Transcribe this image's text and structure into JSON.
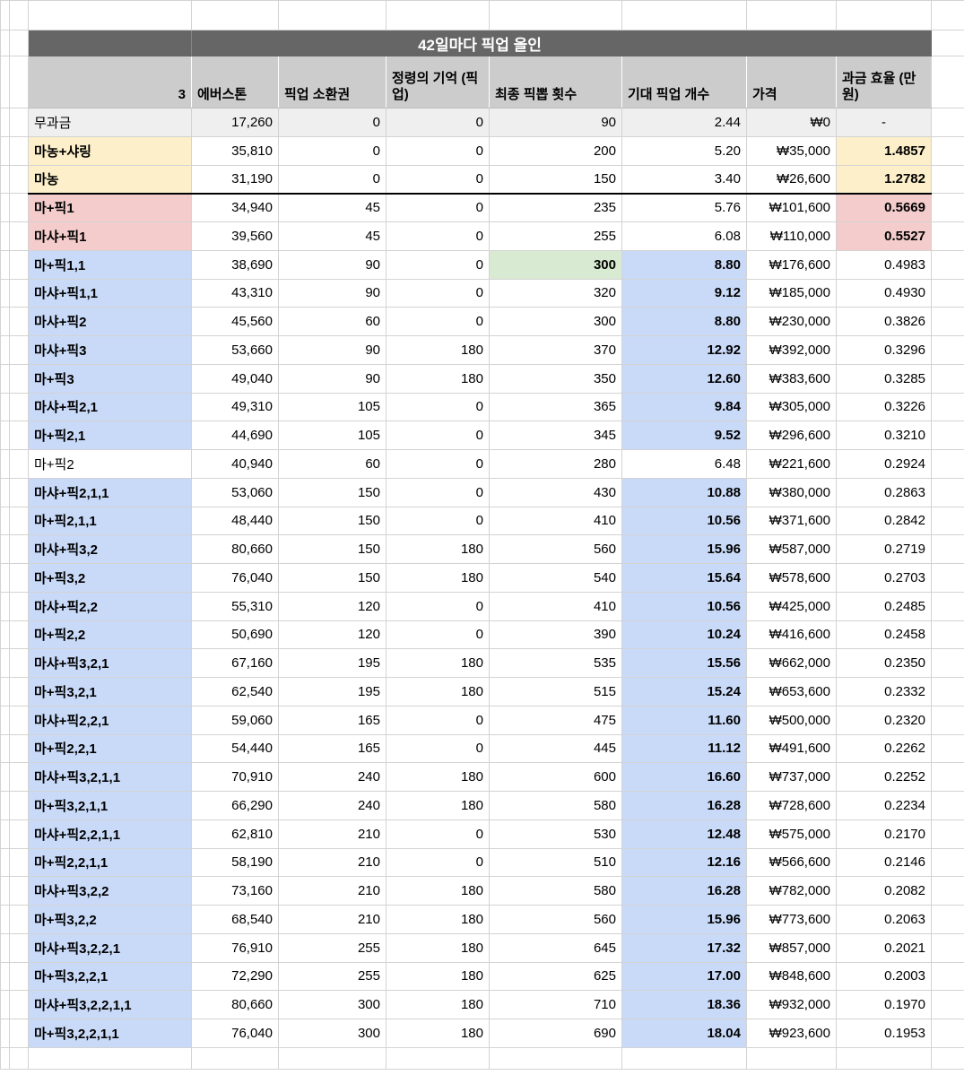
{
  "title": "42일마다 픽업 올인",
  "colors": {
    "title_bar": "#666666",
    "title_text": "#ffffff",
    "header_bg": "#cccccc",
    "free_row_bg": "#efefef",
    "tier_yellow": "#fcefca",
    "tier_pink": "#f4cccc",
    "tier_blue": "#c9daf8",
    "highlight_green": "#d9ead3",
    "gridline": "#d3d3d3"
  },
  "table": {
    "columns": [
      {
        "key": "label",
        "label": "3"
      },
      {
        "key": "everstone",
        "label": "에버스톤"
      },
      {
        "key": "ticket",
        "label": "픽업 소환권"
      },
      {
        "key": "memory",
        "label": "정령의 기억 (픽업)"
      },
      {
        "key": "final",
        "label": "최종 픽뽑 횟수"
      },
      {
        "key": "expected",
        "label": "기대 픽업 개수"
      },
      {
        "key": "price",
        "label": "가격"
      },
      {
        "key": "efficiency",
        "label": "과금 효율 (만원)"
      }
    ],
    "rows": [
      {
        "label": "무과금",
        "everstone": "17,260",
        "ticket": "0",
        "memory": "0",
        "final": "90",
        "expected": "2.44",
        "price": "₩0",
        "efficiency": "-",
        "row_bg": "gray",
        "label_bold": false,
        "label_bg": "none",
        "final_hl": false,
        "exp_hl": false,
        "eff_bg": "none",
        "eff_bold": false,
        "thick_bottom": false
      },
      {
        "label": "마농+샤링",
        "everstone": "35,810",
        "ticket": "0",
        "memory": "0",
        "final": "200",
        "expected": "5.20",
        "price": "₩35,000",
        "efficiency": "1.4857",
        "row_bg": "none",
        "label_bold": true,
        "label_bg": "yellow",
        "final_hl": false,
        "exp_hl": false,
        "eff_bg": "yellow",
        "eff_bold": true,
        "thick_bottom": false
      },
      {
        "label": "마농",
        "everstone": "31,190",
        "ticket": "0",
        "memory": "0",
        "final": "150",
        "expected": "3.40",
        "price": "₩26,600",
        "efficiency": "1.2782",
        "row_bg": "none",
        "label_bold": true,
        "label_bg": "yellow",
        "final_hl": false,
        "exp_hl": false,
        "eff_bg": "yellow",
        "eff_bold": true,
        "thick_bottom": true
      },
      {
        "label": "마+픽1",
        "everstone": "34,940",
        "ticket": "45",
        "memory": "0",
        "final": "235",
        "expected": "5.76",
        "price": "₩101,600",
        "efficiency": "0.5669",
        "row_bg": "none",
        "label_bold": true,
        "label_bg": "pink",
        "final_hl": false,
        "exp_hl": false,
        "eff_bg": "pink",
        "eff_bold": true,
        "thick_bottom": false
      },
      {
        "label": "마샤+픽1",
        "everstone": "39,560",
        "ticket": "45",
        "memory": "0",
        "final": "255",
        "expected": "6.08",
        "price": "₩110,000",
        "efficiency": "0.5527",
        "row_bg": "none",
        "label_bold": true,
        "label_bg": "pink",
        "final_hl": false,
        "exp_hl": false,
        "eff_bg": "pink",
        "eff_bold": true,
        "thick_bottom": false
      },
      {
        "label": "마+픽1,1",
        "everstone": "38,690",
        "ticket": "90",
        "memory": "0",
        "final": "300",
        "expected": "8.80",
        "price": "₩176,600",
        "efficiency": "0.4983",
        "row_bg": "none",
        "label_bold": true,
        "label_bg": "blue",
        "final_hl": true,
        "exp_hl": true,
        "eff_bg": "none",
        "eff_bold": false,
        "thick_bottom": false
      },
      {
        "label": "마샤+픽1,1",
        "everstone": "43,310",
        "ticket": "90",
        "memory": "0",
        "final": "320",
        "expected": "9.12",
        "price": "₩185,000",
        "efficiency": "0.4930",
        "row_bg": "none",
        "label_bold": true,
        "label_bg": "blue",
        "final_hl": false,
        "exp_hl": true,
        "eff_bg": "none",
        "eff_bold": false,
        "thick_bottom": false
      },
      {
        "label": "마샤+픽2",
        "everstone": "45,560",
        "ticket": "60",
        "memory": "0",
        "final": "300",
        "expected": "8.80",
        "price": "₩230,000",
        "efficiency": "0.3826",
        "row_bg": "none",
        "label_bold": true,
        "label_bg": "blue",
        "final_hl": false,
        "exp_hl": true,
        "eff_bg": "none",
        "eff_bold": false,
        "thick_bottom": false
      },
      {
        "label": "마샤+픽3",
        "everstone": "53,660",
        "ticket": "90",
        "memory": "180",
        "final": "370",
        "expected": "12.92",
        "price": "₩392,000",
        "efficiency": "0.3296",
        "row_bg": "none",
        "label_bold": true,
        "label_bg": "blue",
        "final_hl": false,
        "exp_hl": true,
        "eff_bg": "none",
        "eff_bold": false,
        "thick_bottom": false
      },
      {
        "label": "마+픽3",
        "everstone": "49,040",
        "ticket": "90",
        "memory": "180",
        "final": "350",
        "expected": "12.60",
        "price": "₩383,600",
        "efficiency": "0.3285",
        "row_bg": "none",
        "label_bold": true,
        "label_bg": "blue",
        "final_hl": false,
        "exp_hl": true,
        "eff_bg": "none",
        "eff_bold": false,
        "thick_bottom": false
      },
      {
        "label": "마샤+픽2,1",
        "everstone": "49,310",
        "ticket": "105",
        "memory": "0",
        "final": "365",
        "expected": "9.84",
        "price": "₩305,000",
        "efficiency": "0.3226",
        "row_bg": "none",
        "label_bold": true,
        "label_bg": "blue",
        "final_hl": false,
        "exp_hl": true,
        "eff_bg": "none",
        "eff_bold": false,
        "thick_bottom": false
      },
      {
        "label": "마+픽2,1",
        "everstone": "44,690",
        "ticket": "105",
        "memory": "0",
        "final": "345",
        "expected": "9.52",
        "price": "₩296,600",
        "efficiency": "0.3210",
        "row_bg": "none",
        "label_bold": true,
        "label_bg": "blue",
        "final_hl": false,
        "exp_hl": true,
        "eff_bg": "none",
        "eff_bold": false,
        "thick_bottom": false
      },
      {
        "label": "마+픽2",
        "everstone": "40,940",
        "ticket": "60",
        "memory": "0",
        "final": "280",
        "expected": "6.48",
        "price": "₩221,600",
        "efficiency": "0.2924",
        "row_bg": "none",
        "label_bold": false,
        "label_bg": "none",
        "final_hl": false,
        "exp_hl": false,
        "eff_bg": "none",
        "eff_bold": false,
        "thick_bottom": false
      },
      {
        "label": "마샤+픽2,1,1",
        "everstone": "53,060",
        "ticket": "150",
        "memory": "0",
        "final": "430",
        "expected": "10.88",
        "price": "₩380,000",
        "efficiency": "0.2863",
        "row_bg": "none",
        "label_bold": true,
        "label_bg": "blue",
        "final_hl": false,
        "exp_hl": true,
        "eff_bg": "none",
        "eff_bold": false,
        "thick_bottom": false
      },
      {
        "label": "마+픽2,1,1",
        "everstone": "48,440",
        "ticket": "150",
        "memory": "0",
        "final": "410",
        "expected": "10.56",
        "price": "₩371,600",
        "efficiency": "0.2842",
        "row_bg": "none",
        "label_bold": true,
        "label_bg": "blue",
        "final_hl": false,
        "exp_hl": true,
        "eff_bg": "none",
        "eff_bold": false,
        "thick_bottom": false
      },
      {
        "label": "마샤+픽3,2",
        "everstone": "80,660",
        "ticket": "150",
        "memory": "180",
        "final": "560",
        "expected": "15.96",
        "price": "₩587,000",
        "efficiency": "0.2719",
        "row_bg": "none",
        "label_bold": true,
        "label_bg": "blue",
        "final_hl": false,
        "exp_hl": true,
        "eff_bg": "none",
        "eff_bold": false,
        "thick_bottom": false
      },
      {
        "label": "마+픽3,2",
        "everstone": "76,040",
        "ticket": "150",
        "memory": "180",
        "final": "540",
        "expected": "15.64",
        "price": "₩578,600",
        "efficiency": "0.2703",
        "row_bg": "none",
        "label_bold": true,
        "label_bg": "blue",
        "final_hl": false,
        "exp_hl": true,
        "eff_bg": "none",
        "eff_bold": false,
        "thick_bottom": false
      },
      {
        "label": "마샤+픽2,2",
        "everstone": "55,310",
        "ticket": "120",
        "memory": "0",
        "final": "410",
        "expected": "10.56",
        "price": "₩425,000",
        "efficiency": "0.2485",
        "row_bg": "none",
        "label_bold": true,
        "label_bg": "blue",
        "final_hl": false,
        "exp_hl": true,
        "eff_bg": "none",
        "eff_bold": false,
        "thick_bottom": false
      },
      {
        "label": "마+픽2,2",
        "everstone": "50,690",
        "ticket": "120",
        "memory": "0",
        "final": "390",
        "expected": "10.24",
        "price": "₩416,600",
        "efficiency": "0.2458",
        "row_bg": "none",
        "label_bold": true,
        "label_bg": "blue",
        "final_hl": false,
        "exp_hl": true,
        "eff_bg": "none",
        "eff_bold": false,
        "thick_bottom": false
      },
      {
        "label": "마샤+픽3,2,1",
        "everstone": "67,160",
        "ticket": "195",
        "memory": "180",
        "final": "535",
        "expected": "15.56",
        "price": "₩662,000",
        "efficiency": "0.2350",
        "row_bg": "none",
        "label_bold": true,
        "label_bg": "blue",
        "final_hl": false,
        "exp_hl": true,
        "eff_bg": "none",
        "eff_bold": false,
        "thick_bottom": false
      },
      {
        "label": "마+픽3,2,1",
        "everstone": "62,540",
        "ticket": "195",
        "memory": "180",
        "final": "515",
        "expected": "15.24",
        "price": "₩653,600",
        "efficiency": "0.2332",
        "row_bg": "none",
        "label_bold": true,
        "label_bg": "blue",
        "final_hl": false,
        "exp_hl": true,
        "eff_bg": "none",
        "eff_bold": false,
        "thick_bottom": false
      },
      {
        "label": "마샤+픽2,2,1",
        "everstone": "59,060",
        "ticket": "165",
        "memory": "0",
        "final": "475",
        "expected": "11.60",
        "price": "₩500,000",
        "efficiency": "0.2320",
        "row_bg": "none",
        "label_bold": true,
        "label_bg": "blue",
        "final_hl": false,
        "exp_hl": true,
        "eff_bg": "none",
        "eff_bold": false,
        "thick_bottom": false
      },
      {
        "label": "마+픽2,2,1",
        "everstone": "54,440",
        "ticket": "165",
        "memory": "0",
        "final": "445",
        "expected": "11.12",
        "price": "₩491,600",
        "efficiency": "0.2262",
        "row_bg": "none",
        "label_bold": true,
        "label_bg": "blue",
        "final_hl": false,
        "exp_hl": true,
        "eff_bg": "none",
        "eff_bold": false,
        "thick_bottom": false
      },
      {
        "label": "마샤+픽3,2,1,1",
        "everstone": "70,910",
        "ticket": "240",
        "memory": "180",
        "final": "600",
        "expected": "16.60",
        "price": "₩737,000",
        "efficiency": "0.2252",
        "row_bg": "none",
        "label_bold": true,
        "label_bg": "blue",
        "final_hl": false,
        "exp_hl": true,
        "eff_bg": "none",
        "eff_bold": false,
        "thick_bottom": false
      },
      {
        "label": "마+픽3,2,1,1",
        "everstone": "66,290",
        "ticket": "240",
        "memory": "180",
        "final": "580",
        "expected": "16.28",
        "price": "₩728,600",
        "efficiency": "0.2234",
        "row_bg": "none",
        "label_bold": true,
        "label_bg": "blue",
        "final_hl": false,
        "exp_hl": true,
        "eff_bg": "none",
        "eff_bold": false,
        "thick_bottom": false
      },
      {
        "label": "마샤+픽2,2,1,1",
        "everstone": "62,810",
        "ticket": "210",
        "memory": "0",
        "final": "530",
        "expected": "12.48",
        "price": "₩575,000",
        "efficiency": "0.2170",
        "row_bg": "none",
        "label_bold": true,
        "label_bg": "blue",
        "final_hl": false,
        "exp_hl": true,
        "eff_bg": "none",
        "eff_bold": false,
        "thick_bottom": false
      },
      {
        "label": "마+픽2,2,1,1",
        "everstone": "58,190",
        "ticket": "210",
        "memory": "0",
        "final": "510",
        "expected": "12.16",
        "price": "₩566,600",
        "efficiency": "0.2146",
        "row_bg": "none",
        "label_bold": true,
        "label_bg": "blue",
        "final_hl": false,
        "exp_hl": true,
        "eff_bg": "none",
        "eff_bold": false,
        "thick_bottom": false
      },
      {
        "label": "마샤+픽3,2,2",
        "everstone": "73,160",
        "ticket": "210",
        "memory": "180",
        "final": "580",
        "expected": "16.28",
        "price": "₩782,000",
        "efficiency": "0.2082",
        "row_bg": "none",
        "label_bold": true,
        "label_bg": "blue",
        "final_hl": false,
        "exp_hl": true,
        "eff_bg": "none",
        "eff_bold": false,
        "thick_bottom": false
      },
      {
        "label": "마+픽3,2,2",
        "everstone": "68,540",
        "ticket": "210",
        "memory": "180",
        "final": "560",
        "expected": "15.96",
        "price": "₩773,600",
        "efficiency": "0.2063",
        "row_bg": "none",
        "label_bold": true,
        "label_bg": "blue",
        "final_hl": false,
        "exp_hl": true,
        "eff_bg": "none",
        "eff_bold": false,
        "thick_bottom": false
      },
      {
        "label": "마샤+픽3,2,2,1",
        "everstone": "76,910",
        "ticket": "255",
        "memory": "180",
        "final": "645",
        "expected": "17.32",
        "price": "₩857,000",
        "efficiency": "0.2021",
        "row_bg": "none",
        "label_bold": true,
        "label_bg": "blue",
        "final_hl": false,
        "exp_hl": true,
        "eff_bg": "none",
        "eff_bold": false,
        "thick_bottom": false
      },
      {
        "label": "마+픽3,2,2,1",
        "everstone": "72,290",
        "ticket": "255",
        "memory": "180",
        "final": "625",
        "expected": "17.00",
        "price": "₩848,600",
        "efficiency": "0.2003",
        "row_bg": "none",
        "label_bold": true,
        "label_bg": "blue",
        "final_hl": false,
        "exp_hl": true,
        "eff_bg": "none",
        "eff_bold": false,
        "thick_bottom": false
      },
      {
        "label": "마샤+픽3,2,2,1,1",
        "everstone": "80,660",
        "ticket": "300",
        "memory": "180",
        "final": "710",
        "expected": "18.36",
        "price": "₩932,000",
        "efficiency": "0.1970",
        "row_bg": "none",
        "label_bold": true,
        "label_bg": "blue",
        "final_hl": false,
        "exp_hl": true,
        "eff_bg": "none",
        "eff_bold": false,
        "thick_bottom": false
      },
      {
        "label": "마+픽3,2,2,1,1",
        "everstone": "76,040",
        "ticket": "300",
        "memory": "180",
        "final": "690",
        "expected": "18.04",
        "price": "₩923,600",
        "efficiency": "0.1953",
        "row_bg": "none",
        "label_bold": true,
        "label_bg": "blue",
        "final_hl": false,
        "exp_hl": true,
        "eff_bg": "none",
        "eff_bold": false,
        "thick_bottom": false
      }
    ]
  }
}
